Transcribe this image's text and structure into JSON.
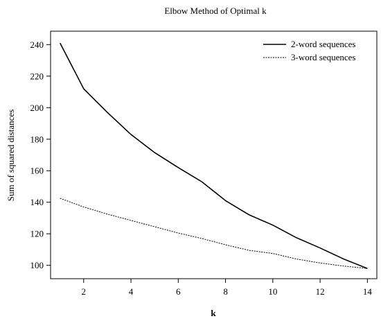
{
  "chart_data": {
    "type": "line",
    "title": "Elbow Method of Optimal k",
    "xlabel": "k",
    "ylabel": "Sum of squared distances",
    "xlim": [
      0.6,
      14.4
    ],
    "ylim": [
      91.5,
      248.5
    ],
    "x_ticks": [
      2,
      4,
      6,
      8,
      10,
      12,
      14
    ],
    "y_ticks": [
      100,
      120,
      140,
      160,
      180,
      200,
      220,
      240
    ],
    "grid": false,
    "legend_position": "top-right",
    "x": [
      1,
      2,
      3,
      4,
      5,
      6,
      7,
      8,
      9,
      10,
      11,
      12,
      13,
      14
    ],
    "series": [
      {
        "name": "2-word sequences",
        "style": "solid",
        "color": "#000000",
        "values": [
          241,
          212,
          197,
          183,
          171.5,
          162,
          153,
          141,
          132,
          125.5,
          117.5,
          111,
          104,
          98
        ]
      },
      {
        "name": "3-word sequences",
        "style": "dashed",
        "color": "#000000",
        "values": [
          142.5,
          137,
          132.5,
          128.5,
          124.5,
          120.5,
          117,
          113,
          109.5,
          107.5,
          104,
          101.5,
          99.5,
          98
        ]
      }
    ]
  }
}
